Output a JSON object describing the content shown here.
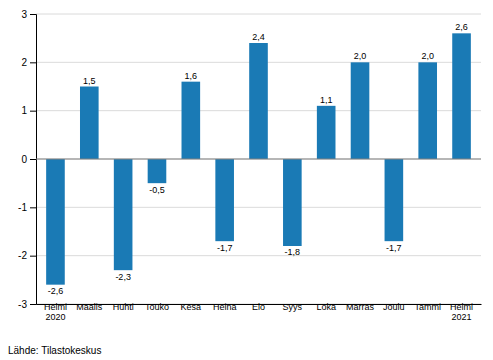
{
  "chart_data": {
    "type": "bar",
    "categories": [
      "Helmi\n2020",
      "Maalis",
      "Huhti",
      "Touko",
      "Kesä",
      "Heinä",
      "Elo",
      "Syys",
      "Loka",
      "Marras",
      "Joulu",
      "Tammi",
      "Helmi\n2021"
    ],
    "values": [
      -2.6,
      1.5,
      -2.3,
      -0.5,
      1.6,
      -1.7,
      2.4,
      -1.8,
      1.1,
      2.0,
      -1.7,
      2.0,
      2.6
    ],
    "value_labels": [
      "-2,6",
      "1,5",
      "-2,3",
      "-0,5",
      "1,6",
      "-1,7",
      "2,4",
      "-1,8",
      "1,1",
      "2,0",
      "-1,7",
      "2,0",
      "2,6"
    ],
    "data_labels": true,
    "color": "#1a7ab5",
    "ylim": [
      -3,
      3
    ],
    "yticks": [
      -3,
      -2,
      -1,
      0,
      1,
      2,
      3
    ],
    "grid": true,
    "annotations": [
      "Lähde: Tilastokeskus"
    ]
  }
}
